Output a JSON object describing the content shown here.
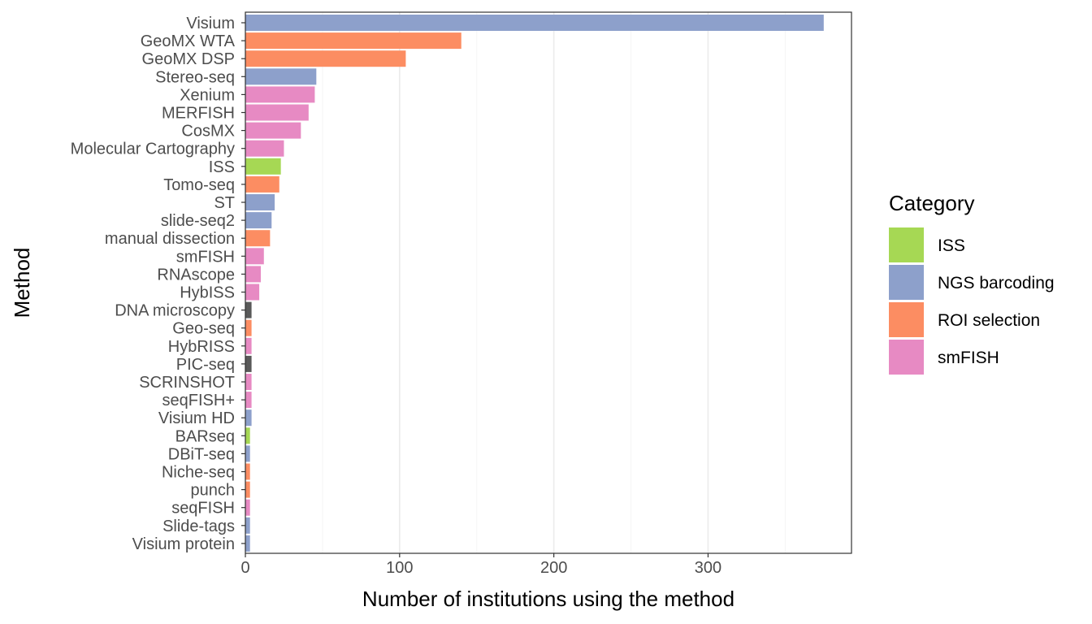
{
  "chart_data": {
    "type": "bar",
    "orientation": "horizontal",
    "xlabel": "Number of institutions using the method",
    "ylabel": "Method",
    "xlim": [
      0,
      393
    ],
    "xticks": [
      0,
      100,
      200,
      300
    ],
    "grid": true,
    "legend_position": "right",
    "legend": {
      "title": "Category",
      "entries": [
        {
          "name": "ISS",
          "color": "#a6d854"
        },
        {
          "name": "NGS barcoding",
          "color": "#8da0cb"
        },
        {
          "name": "ROI selection",
          "color": "#fc8d62"
        },
        {
          "name": "smFISH",
          "color": "#e78ac3"
        }
      ]
    },
    "colors": {
      "ISS": "#a6d854",
      "NGS barcoding": "#8da0cb",
      "ROI selection": "#fc8d62",
      "smFISH": "#e78ac3",
      "Other": "#595959"
    },
    "bars": [
      {
        "label": "Visium",
        "value": 375,
        "category": "NGS barcoding"
      },
      {
        "label": "GeoMX WTA",
        "value": 140,
        "category": "ROI selection"
      },
      {
        "label": "GeoMX DSP",
        "value": 104,
        "category": "ROI selection"
      },
      {
        "label": "Stereo-seq",
        "value": 46,
        "category": "NGS barcoding"
      },
      {
        "label": "Xenium",
        "value": 45,
        "category": "smFISH"
      },
      {
        "label": "MERFISH",
        "value": 41,
        "category": "smFISH"
      },
      {
        "label": "CosMX",
        "value": 36,
        "category": "smFISH"
      },
      {
        "label": "Molecular Cartography",
        "value": 25,
        "category": "smFISH"
      },
      {
        "label": "ISS",
        "value": 23,
        "category": "ISS"
      },
      {
        "label": "Tomo-seq",
        "value": 22,
        "category": "ROI selection"
      },
      {
        "label": "ST",
        "value": 19,
        "category": "NGS barcoding"
      },
      {
        "label": "slide-seq2",
        "value": 17,
        "category": "NGS barcoding"
      },
      {
        "label": "manual dissection",
        "value": 16,
        "category": "ROI selection"
      },
      {
        "label": "smFISH",
        "value": 12,
        "category": "smFISH"
      },
      {
        "label": "RNAscope",
        "value": 10,
        "category": "smFISH"
      },
      {
        "label": "HybISS",
        "value": 9,
        "category": "smFISH"
      },
      {
        "label": "DNA microscopy",
        "value": 4,
        "category": "Other"
      },
      {
        "label": "Geo-seq",
        "value": 4,
        "category": "ROI selection"
      },
      {
        "label": "HybRISS",
        "value": 4,
        "category": "smFISH"
      },
      {
        "label": "PIC-seq",
        "value": 4,
        "category": "Other"
      },
      {
        "label": "SCRINSHOT",
        "value": 4,
        "category": "smFISH"
      },
      {
        "label": "seqFISH+",
        "value": 4,
        "category": "smFISH"
      },
      {
        "label": "Visium HD",
        "value": 4,
        "category": "NGS barcoding"
      },
      {
        "label": "BARseq",
        "value": 3,
        "category": "ISS"
      },
      {
        "label": "DBiT-seq",
        "value": 3,
        "category": "NGS barcoding"
      },
      {
        "label": "Niche-seq",
        "value": 3,
        "category": "ROI selection"
      },
      {
        "label": "punch",
        "value": 3,
        "category": "ROI selection"
      },
      {
        "label": "seqFISH",
        "value": 3,
        "category": "smFISH"
      },
      {
        "label": "Slide-tags",
        "value": 3,
        "category": "NGS barcoding"
      },
      {
        "label": "Visium protein",
        "value": 3,
        "category": "NGS barcoding"
      }
    ]
  }
}
